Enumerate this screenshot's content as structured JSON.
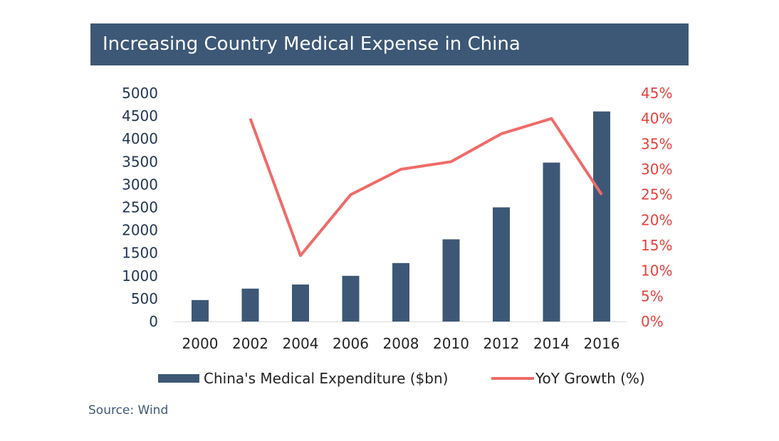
{
  "title": "Increasing Country Medical Expense in China",
  "source": "Source: Wind",
  "colors": {
    "title_bg": "#3d5877",
    "bar": "#3d5877",
    "line": "#ef6b69",
    "left_axis_text": "#1f3556",
    "right_axis_text": "#e8403b"
  },
  "chart_data": {
    "type": "bar",
    "categories": [
      "2000",
      "2002",
      "2004",
      "2006",
      "2008",
      "2010",
      "2012",
      "2014",
      "2016"
    ],
    "series": [
      {
        "name": "China's Medical Expenditure ($bn)",
        "type": "bar",
        "axis": "left",
        "values": [
          470,
          720,
          810,
          1000,
          1280,
          1800,
          2500,
          3480,
          4600
        ]
      },
      {
        "name": "YoY Growth (%)",
        "type": "line",
        "axis": "right",
        "values": [
          null,
          40,
          13,
          25,
          30,
          31.5,
          37,
          40,
          25
        ]
      }
    ],
    "y_left": {
      "ylim": [
        0,
        5000
      ],
      "ticks": [
        "0",
        "500",
        "1000",
        "1500",
        "2000",
        "2500",
        "3000",
        "3500",
        "4000",
        "4500",
        "5000"
      ]
    },
    "y_right": {
      "ylim": [
        0,
        45
      ],
      "ticks": [
        "0%",
        "5%",
        "10%",
        "15%",
        "20%",
        "25%",
        "30%",
        "35%",
        "40%",
        "45%"
      ]
    },
    "grid": false,
    "legend": "bottom"
  }
}
